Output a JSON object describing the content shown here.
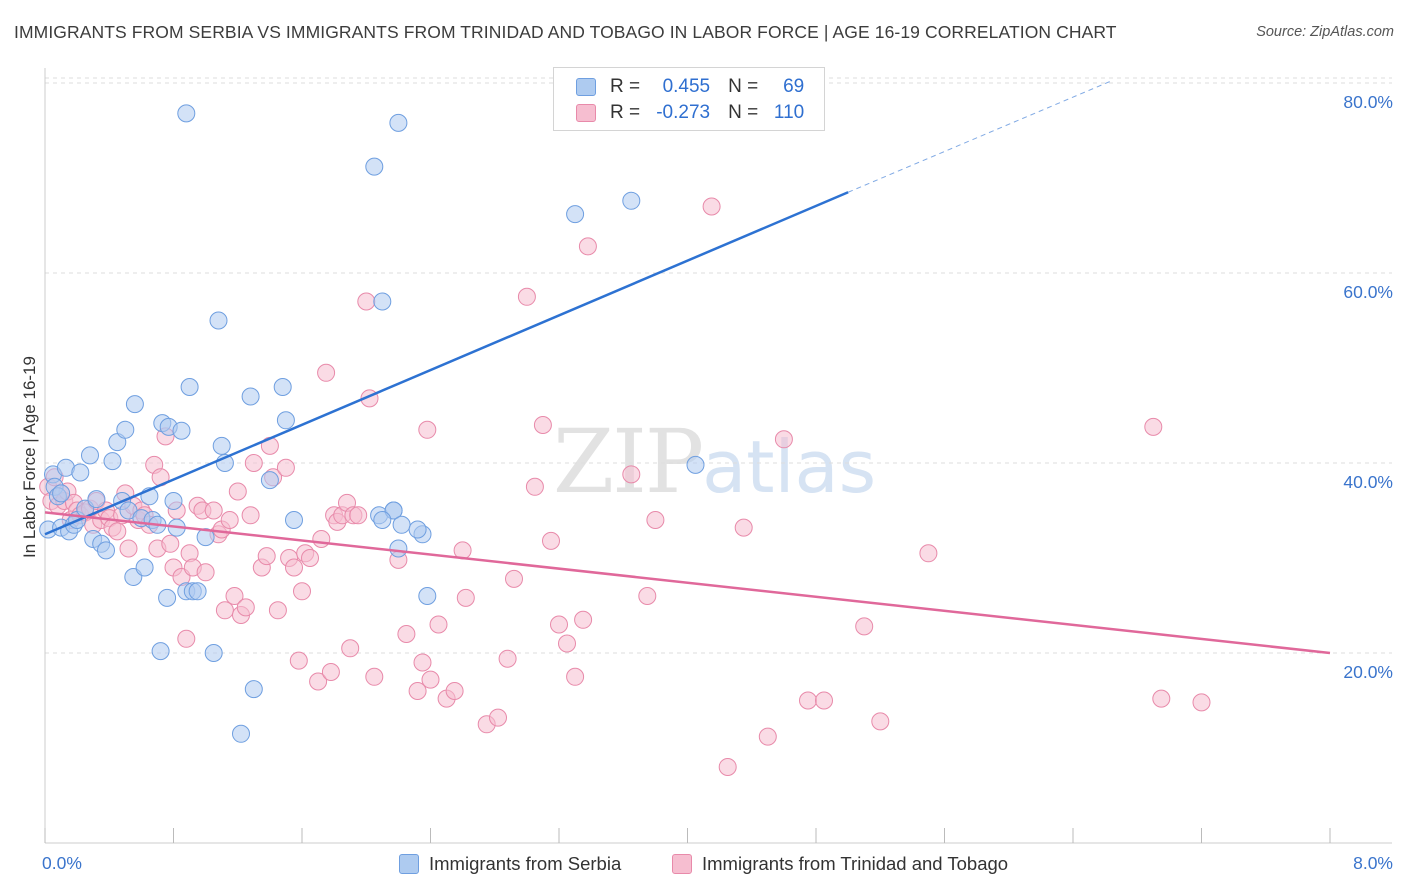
{
  "title": "IMMIGRANTS FROM SERBIA VS IMMIGRANTS FROM TRINIDAD AND TOBAGO IN LABOR FORCE | AGE 16-19 CORRELATION CHART",
  "source": "Source: ZipAtlas.com",
  "watermark": {
    "zip": "ZIP",
    "atlas": "atlas"
  },
  "legend": {
    "r_label": "R =",
    "n_label": "N =",
    "series1": {
      "r": "0.455",
      "n": "69"
    },
    "series2": {
      "r": "-0.273",
      "n": "110"
    }
  },
  "colors": {
    "serbia_fill": "#aecbf0",
    "serbia_stroke": "#6f9fe0",
    "serbia_line": "#2d72d2",
    "trinidad_fill": "#f6bed0",
    "trinidad_stroke": "#e88aaa",
    "trinidad_line": "#e0689a",
    "axis_text": "#3a74cc",
    "grid": "#dddddd"
  },
  "chart_data": {
    "type": "scatter",
    "title": "IMMIGRANTS FROM SERBIA VS IMMIGRANTS FROM TRINIDAD AND TOBAGO IN LABOR FORCE | AGE 16-19 CORRELATION CHART",
    "xlabel": "",
    "ylabel": "In Labor Force | Age 16-19",
    "xlim": [
      0,
      8
    ],
    "ylim": [
      0,
      82
    ],
    "x_tick_labels": [
      "0.0%",
      "8.0%"
    ],
    "y_ticks": [
      20,
      40,
      60,
      80
    ],
    "y_tick_labels": [
      "20.0%",
      "40.0%",
      "60.0%",
      "80.0%"
    ],
    "grid": "horizontal dashed",
    "legend_placement": "top-center",
    "series": [
      {
        "name": "Immigrants from Serbia",
        "r": 0.455,
        "n": 69,
        "trend": {
          "x": [
            0,
            5.0
          ],
          "y": [
            32.5,
            68.5
          ],
          "dashed_extension": {
            "x": [
              5.0,
              6.65
            ],
            "y": [
              68.5,
              80.3
            ]
          }
        },
        "points": [
          [
            0.02,
            33.0
          ],
          [
            0.05,
            38.8
          ],
          [
            0.06,
            37.5
          ],
          [
            0.08,
            36.5
          ],
          [
            0.1,
            36.8
          ],
          [
            0.1,
            33.2
          ],
          [
            0.13,
            39.5
          ],
          [
            0.15,
            32.8
          ],
          [
            0.18,
            33.5
          ],
          [
            0.2,
            34.0
          ],
          [
            0.22,
            39.0
          ],
          [
            0.25,
            35.2
          ],
          [
            0.28,
            40.8
          ],
          [
            0.3,
            32.0
          ],
          [
            0.32,
            36.2
          ],
          [
            0.35,
            31.5
          ],
          [
            0.38,
            30.8
          ],
          [
            0.42,
            40.2
          ],
          [
            0.45,
            42.2
          ],
          [
            0.48,
            36.0
          ],
          [
            0.5,
            43.5
          ],
          [
            0.52,
            35.0
          ],
          [
            0.55,
            28.0
          ],
          [
            0.56,
            46.2
          ],
          [
            0.6,
            34.2
          ],
          [
            0.62,
            29.0
          ],
          [
            0.65,
            36.5
          ],
          [
            0.67,
            34.0
          ],
          [
            0.7,
            33.5
          ],
          [
            0.72,
            20.2
          ],
          [
            0.73,
            44.2
          ],
          [
            0.76,
            25.8
          ],
          [
            0.77,
            43.8
          ],
          [
            0.8,
            36.0
          ],
          [
            0.82,
            33.2
          ],
          [
            0.85,
            43.4
          ],
          [
            0.88,
            26.5
          ],
          [
            0.9,
            48.0
          ],
          [
            0.92,
            26.5
          ],
          [
            0.95,
            26.5
          ],
          [
            1.0,
            32.2
          ],
          [
            1.05,
            20.0
          ],
          [
            1.08,
            55.0
          ],
          [
            1.1,
            41.8
          ],
          [
            1.12,
            40.0
          ],
          [
            1.22,
            11.5
          ],
          [
            1.28,
            47.0
          ],
          [
            1.3,
            16.2
          ],
          [
            1.4,
            38.2
          ],
          [
            1.48,
            48.0
          ],
          [
            1.5,
            44.5
          ],
          [
            1.55,
            34.0
          ],
          [
            0.88,
            76.8
          ],
          [
            2.1,
            57.0
          ],
          [
            2.05,
            71.2
          ],
          [
            2.08,
            34.5
          ],
          [
            2.2,
            75.8
          ],
          [
            2.17,
            35.0
          ],
          [
            2.17,
            35.0
          ],
          [
            2.35,
            32.5
          ],
          [
            2.2,
            31.0
          ],
          [
            2.1,
            34.0
          ],
          [
            2.22,
            33.5
          ],
          [
            2.32,
            33.0
          ],
          [
            2.38,
            26.0
          ],
          [
            3.3,
            66.2
          ],
          [
            3.4,
            76.8
          ],
          [
            3.65,
            67.6
          ],
          [
            4.05,
            39.8
          ]
        ]
      },
      {
        "name": "Immigrants from Trinidad and Tobago",
        "r": -0.273,
        "n": 110,
        "trend": {
          "x": [
            0,
            8.0
          ],
          "y": [
            34.8,
            20.0
          ]
        },
        "points": [
          [
            0.02,
            37.5
          ],
          [
            0.04,
            36.0
          ],
          [
            0.06,
            38.5
          ],
          [
            0.08,
            35.5
          ],
          [
            0.1,
            36.8
          ],
          [
            0.12,
            36.0
          ],
          [
            0.14,
            37.0
          ],
          [
            0.16,
            34.0
          ],
          [
            0.18,
            35.8
          ],
          [
            0.2,
            35.0
          ],
          [
            0.22,
            34.5
          ],
          [
            0.25,
            34.8
          ],
          [
            0.28,
            35.2
          ],
          [
            0.3,
            33.5
          ],
          [
            0.32,
            36.0
          ],
          [
            0.35,
            34.0
          ],
          [
            0.38,
            35.0
          ],
          [
            0.4,
            34.2
          ],
          [
            0.42,
            33.2
          ],
          [
            0.45,
            32.8
          ],
          [
            0.48,
            34.5
          ],
          [
            0.5,
            36.8
          ],
          [
            0.52,
            31.0
          ],
          [
            0.55,
            35.5
          ],
          [
            0.58,
            34.0
          ],
          [
            0.6,
            35.0
          ],
          [
            0.62,
            34.5
          ],
          [
            0.65,
            33.5
          ],
          [
            0.68,
            39.8
          ],
          [
            0.7,
            31.0
          ],
          [
            0.72,
            38.5
          ],
          [
            0.75,
            42.8
          ],
          [
            0.78,
            31.5
          ],
          [
            0.8,
            29.0
          ],
          [
            0.82,
            35.0
          ],
          [
            0.85,
            28.0
          ],
          [
            0.88,
            21.5
          ],
          [
            0.9,
            30.5
          ],
          [
            0.92,
            29.0
          ],
          [
            0.95,
            35.5
          ],
          [
            0.98,
            35.0
          ],
          [
            1.0,
            28.5
          ],
          [
            1.05,
            35.0
          ],
          [
            1.08,
            32.5
          ],
          [
            1.1,
            33.0
          ],
          [
            1.12,
            24.5
          ],
          [
            1.15,
            34.0
          ],
          [
            1.18,
            26.0
          ],
          [
            1.2,
            37.0
          ],
          [
            1.22,
            24.0
          ],
          [
            1.25,
            24.8
          ],
          [
            1.28,
            34.5
          ],
          [
            1.3,
            40.0
          ],
          [
            1.35,
            29.0
          ],
          [
            1.38,
            30.2
          ],
          [
            1.4,
            41.8
          ],
          [
            1.42,
            38.5
          ],
          [
            1.45,
            24.5
          ],
          [
            1.5,
            39.5
          ],
          [
            1.52,
            30.0
          ],
          [
            1.55,
            29.0
          ],
          [
            1.58,
            19.2
          ],
          [
            1.6,
            26.5
          ],
          [
            1.62,
            30.5
          ],
          [
            1.65,
            30.0
          ],
          [
            1.7,
            17.0
          ],
          [
            1.72,
            32.0
          ],
          [
            1.75,
            49.5
          ],
          [
            1.78,
            18.0
          ],
          [
            1.8,
            34.5
          ],
          [
            1.82,
            33.8
          ],
          [
            1.85,
            34.5
          ],
          [
            1.88,
            35.8
          ],
          [
            1.9,
            20.5
          ],
          [
            1.92,
            34.5
          ],
          [
            1.95,
            34.5
          ],
          [
            2.0,
            57.0
          ],
          [
            2.02,
            46.8
          ],
          [
            2.05,
            17.5
          ],
          [
            2.2,
            29.8
          ],
          [
            2.25,
            22.0
          ],
          [
            2.32,
            16.0
          ],
          [
            2.35,
            19.0
          ],
          [
            2.38,
            43.5
          ],
          [
            2.4,
            17.2
          ],
          [
            2.45,
            23.0
          ],
          [
            2.5,
            15.2
          ],
          [
            2.55,
            16.0
          ],
          [
            2.6,
            30.8
          ],
          [
            2.62,
            25.8
          ],
          [
            2.75,
            12.5
          ],
          [
            2.82,
            13.2
          ],
          [
            2.88,
            19.4
          ],
          [
            2.92,
            27.8
          ],
          [
            3.0,
            57.5
          ],
          [
            3.05,
            37.5
          ],
          [
            3.1,
            44.0
          ],
          [
            3.15,
            31.8
          ],
          [
            3.2,
            23.0
          ],
          [
            3.25,
            21.0
          ],
          [
            3.3,
            17.5
          ],
          [
            3.38,
            62.8
          ],
          [
            3.35,
            23.5
          ],
          [
            3.65,
            38.8
          ],
          [
            3.75,
            26.0
          ],
          [
            3.8,
            34.0
          ],
          [
            4.15,
            67.0
          ],
          [
            4.25,
            8.0
          ],
          [
            4.35,
            33.2
          ],
          [
            4.5,
            11.2
          ],
          [
            4.6,
            42.5
          ],
          [
            4.75,
            15.0
          ],
          [
            4.85,
            15.0
          ],
          [
            5.1,
            22.8
          ],
          [
            5.2,
            12.8
          ],
          [
            5.5,
            30.5
          ],
          [
            6.9,
            43.8
          ],
          [
            6.95,
            15.2
          ],
          [
            7.2,
            14.8
          ]
        ]
      }
    ]
  },
  "bottom_legend": {
    "series1": "Immigrants from Serbia",
    "series2": "Immigrants from Trinidad and Tobago"
  }
}
